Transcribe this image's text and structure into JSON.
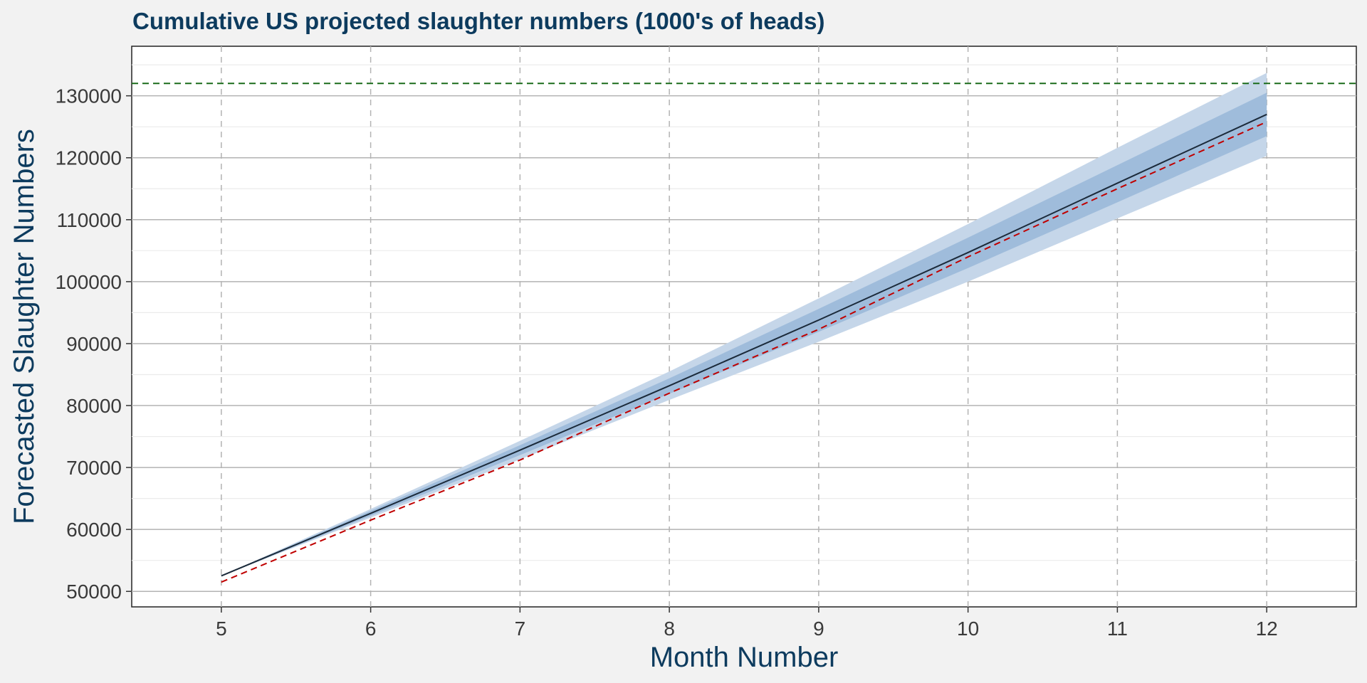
{
  "chart_data": {
    "type": "line",
    "title": "Cumulative US projected slaughter numbers (1000's of heads)",
    "xlabel": "Month Number",
    "ylabel": "Forecasted Slaughter Numbers",
    "xlim": [
      4.4,
      12.6
    ],
    "ylim": [
      47500,
      138000
    ],
    "x_ticks": [
      5,
      6,
      7,
      8,
      9,
      10,
      11,
      12
    ],
    "y_ticks": [
      50000,
      60000,
      70000,
      80000,
      90000,
      100000,
      110000,
      120000,
      130000
    ],
    "x": [
      5,
      6,
      7,
      8,
      9,
      10,
      11,
      12
    ],
    "series": [
      {
        "values": [
          52500,
          62600,
          72800,
          83200,
          93800,
          104700,
          115900,
          127000
        ],
        "color": "#1b2a3a",
        "style": "solid"
      },
      {
        "values": [
          51500,
          61500,
          71200,
          82000,
          92300,
          104000,
          115000,
          125800
        ],
        "color": "#c00000",
        "style": "dashed"
      }
    ],
    "bands": [
      {
        "lower": [
          52500,
          61900,
          71300,
          80900,
          90300,
          100000,
          110200,
          120300
        ],
        "upper": [
          52500,
          63300,
          74300,
          85500,
          97300,
          109300,
          121600,
          133700
        ],
        "color": "#c5d6e9"
      },
      {
        "lower": [
          52500,
          62200,
          72000,
          81900,
          91900,
          102200,
          112800,
          123500
        ],
        "upper": [
          52500,
          63000,
          73600,
          84400,
          95600,
          107100,
          118800,
          130500
        ],
        "color": "#9fbcdb"
      }
    ],
    "reference_line": {
      "y": 132000,
      "color": "#1a6b1a",
      "style": "dashed"
    },
    "grid": {
      "major": true,
      "minor": true,
      "vertical_dashed": true
    }
  }
}
